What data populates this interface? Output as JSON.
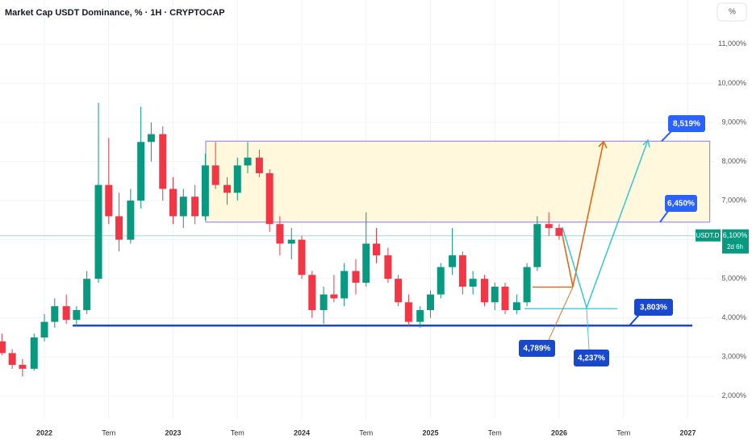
{
  "chart_data": {
    "type": "candlestick",
    "title": "Market Cap USDT Dominance, % · 1H · CRYPTOCAP",
    "scale_button": "%",
    "up_color": "#089981",
    "down_color": "#f23645",
    "grid": true,
    "xlim": [
      2021.655,
      2027.204
    ],
    "ylim": [
      1.42,
      12.13
    ],
    "xticks": [
      2022,
      {
        "value": 2022.5,
        "label": "Tem"
      },
      2023,
      {
        "value": 2023.5,
        "label": "Tem"
      },
      2024,
      {
        "value": 2024.5,
        "label": "Tem"
      },
      2025,
      {
        "value": 2025.5,
        "label": "Tem"
      },
      2026,
      {
        "value": 2026.5,
        "label": "Tem"
      },
      2027
    ],
    "yticks": [
      {
        "value": 2,
        "label": "2,000%"
      },
      {
        "value": 3,
        "label": "3,000%"
      },
      {
        "value": 4,
        "label": "4,000%"
      },
      {
        "value": 5,
        "label": "5,000%"
      },
      {
        "value": 6,
        "label": "6,000%"
      },
      {
        "value": 7,
        "label": "7,000%"
      },
      {
        "value": 8,
        "label": "8,000%"
      },
      {
        "value": 9,
        "label": "9,000%"
      },
      {
        "value": 10,
        "label": "10,000%"
      },
      {
        "value": 11,
        "label": "11,000%"
      }
    ],
    "x": [
      2021.67,
      2021.75,
      2021.83,
      2021.92,
      2022.0,
      2022.08,
      2022.17,
      2022.25,
      2022.33,
      2022.42,
      2022.5,
      2022.58,
      2022.67,
      2022.75,
      2022.83,
      2022.92,
      2023.0,
      2023.08,
      2023.17,
      2023.25,
      2023.33,
      2023.42,
      2023.5,
      2023.58,
      2023.67,
      2023.75,
      2023.83,
      2023.92,
      2024.0,
      2024.08,
      2024.17,
      2024.25,
      2024.33,
      2024.42,
      2024.5,
      2024.58,
      2024.67,
      2024.75,
      2024.83,
      2024.92,
      2025.0,
      2025.08,
      2025.17,
      2025.25,
      2025.33,
      2025.42,
      2025.5,
      2025.58,
      2025.67,
      2025.75,
      2025.83,
      2025.92,
      2026.0
    ],
    "open": [
      3.4,
      3.1,
      2.8,
      2.7,
      3.5,
      3.9,
      4.3,
      3.95,
      4.2,
      5.0,
      7.4,
      6.6,
      6.0,
      7.0,
      8.5,
      8.7,
      7.3,
      6.6,
      7.1,
      6.6,
      7.9,
      7.4,
      7.2,
      7.9,
      8.1,
      7.7,
      6.4,
      5.9,
      6.0,
      5.1,
      4.2,
      4.6,
      4.5,
      5.2,
      4.9,
      5.9,
      5.6,
      5.0,
      4.4,
      3.9,
      4.2,
      4.6,
      5.3,
      5.6,
      4.8,
      5.0,
      4.4,
      4.8,
      4.2,
      4.4,
      5.3,
      6.4,
      6.3
    ],
    "high": [
      3.6,
      3.2,
      2.95,
      3.6,
      4.1,
      4.5,
      4.6,
      4.3,
      5.2,
      9.5,
      8.6,
      7.2,
      7.3,
      9.4,
      9.0,
      8.9,
      7.6,
      7.3,
      7.4,
      8.2,
      8.5,
      7.6,
      8.1,
      8.5,
      8.3,
      7.8,
      6.6,
      6.3,
      6.1,
      5.2,
      4.8,
      5.1,
      5.4,
      5.5,
      6.7,
      6.3,
      5.8,
      5.1,
      4.6,
      4.3,
      4.7,
      5.4,
      6.3,
      5.7,
      5.2,
      5.1,
      4.9,
      4.9,
      4.6,
      5.4,
      6.6,
      6.7,
      6.4
    ],
    "low": [
      3.05,
      2.7,
      2.5,
      2.65,
      3.4,
      3.75,
      3.85,
      3.78,
      4.1,
      4.9,
      6.4,
      5.7,
      5.9,
      6.8,
      8.0,
      7.0,
      6.4,
      6.3,
      6.4,
      6.5,
      7.3,
      6.9,
      7.0,
      7.7,
      7.6,
      6.2,
      5.6,
      5.5,
      5.0,
      4.0,
      3.85,
      4.4,
      4.3,
      4.6,
      4.8,
      5.4,
      4.9,
      4.3,
      3.8,
      3.75,
      4.0,
      4.5,
      5.1,
      4.6,
      4.6,
      4.3,
      4.2,
      4.1,
      4.1,
      4.3,
      5.2,
      6.1,
      6.0
    ],
    "close": [
      3.1,
      2.8,
      2.7,
      3.5,
      3.9,
      4.3,
      3.95,
      4.2,
      5.0,
      7.4,
      6.6,
      6.0,
      7.0,
      8.5,
      8.7,
      7.3,
      6.6,
      7.1,
      6.6,
      7.9,
      7.4,
      7.2,
      7.9,
      8.1,
      7.7,
      6.4,
      5.9,
      6.0,
      5.1,
      4.2,
      4.6,
      4.5,
      5.2,
      4.9,
      5.9,
      5.6,
      5.0,
      4.4,
      3.9,
      4.2,
      4.6,
      5.3,
      5.6,
      4.8,
      5.0,
      4.4,
      4.8,
      4.2,
      4.4,
      5.3,
      6.4,
      6.3,
      6.1
    ],
    "last_price": {
      "symbol": "USDT.D",
      "value": 6.1,
      "label": "6,100%",
      "countdown": "2d 6h",
      "color": "#089981"
    },
    "levels": [
      {
        "value": 8.519,
        "label": "8,519%",
        "color": "#2962ff"
      },
      {
        "value": 6.45,
        "label": "6,450%",
        "color": "#2962ff"
      },
      {
        "value": 3.803,
        "label": "3,803%",
        "color": "#1848cc"
      },
      {
        "value": 4.789,
        "label": "4,789%",
        "color": "#1848cc"
      },
      {
        "value": 4.237,
        "label": "4,237%",
        "color": "#1848cc"
      }
    ]
  }
}
